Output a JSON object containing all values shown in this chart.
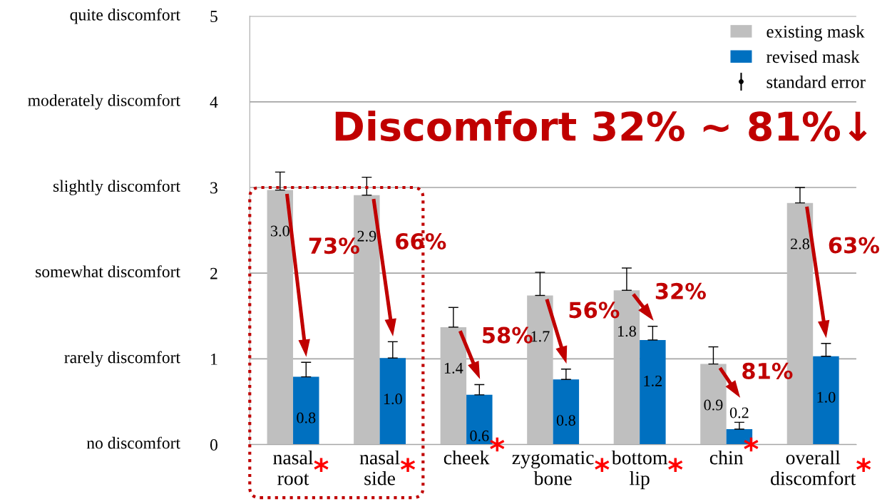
{
  "chart_data": {
    "type": "bar",
    "categories": [
      "nasal\nroot",
      "nasal\nside",
      "cheek",
      "zygomatic\nbone",
      "bottom\nlip",
      "chin",
      "overall\ndiscomfort"
    ],
    "series": [
      {
        "name": "existing mask",
        "color": "#bfbfbf",
        "values": [
          2.97,
          2.91,
          1.37,
          1.74,
          1.8,
          0.94,
          2.82
        ],
        "value_labels": [
          "3.0",
          "2.9",
          "1.4",
          "1.7",
          "1.8",
          "0.9",
          "2.8"
        ],
        "errors": [
          [
            2.97,
            3.18
          ],
          [
            2.91,
            3.12
          ],
          [
            1.37,
            1.6
          ],
          [
            1.74,
            2.01
          ],
          [
            1.8,
            2.06
          ],
          [
            0.94,
            1.14
          ],
          [
            2.82,
            3.0
          ]
        ]
      },
      {
        "name": "revised mask",
        "color": "#0070c0",
        "values": [
          0.79,
          1.01,
          0.58,
          0.76,
          1.22,
          0.18,
          1.03
        ],
        "value_labels": [
          "0.8",
          "1.0",
          "0.6",
          "0.8",
          "1.2",
          "0.2",
          "1.0"
        ],
        "errors": [
          [
            0.79,
            0.96
          ],
          [
            1.01,
            1.2
          ],
          [
            0.58,
            0.7
          ],
          [
            0.76,
            0.88
          ],
          [
            1.22,
            1.38
          ],
          [
            0.18,
            0.26
          ],
          [
            1.03,
            1.18
          ]
        ]
      }
    ],
    "ylim": [
      0,
      5
    ],
    "yticks": [
      0,
      1,
      2,
      3,
      4,
      5
    ],
    "grid": "y",
    "legend": "top right",
    "annotations": [
      "standard error",
      "Discomfort 32% ~ 81%↓",
      "no discomfort",
      "rarely discomfort",
      "somewhat discomfort",
      "slightly discomfort",
      "moderately discomfort",
      "quite discomfort",
      "73%",
      "66%",
      "58%",
      "56%",
      "32%",
      "81%",
      "63%",
      "*",
      "*",
      "*",
      "*",
      "*",
      "*",
      "*"
    ]
  }
}
